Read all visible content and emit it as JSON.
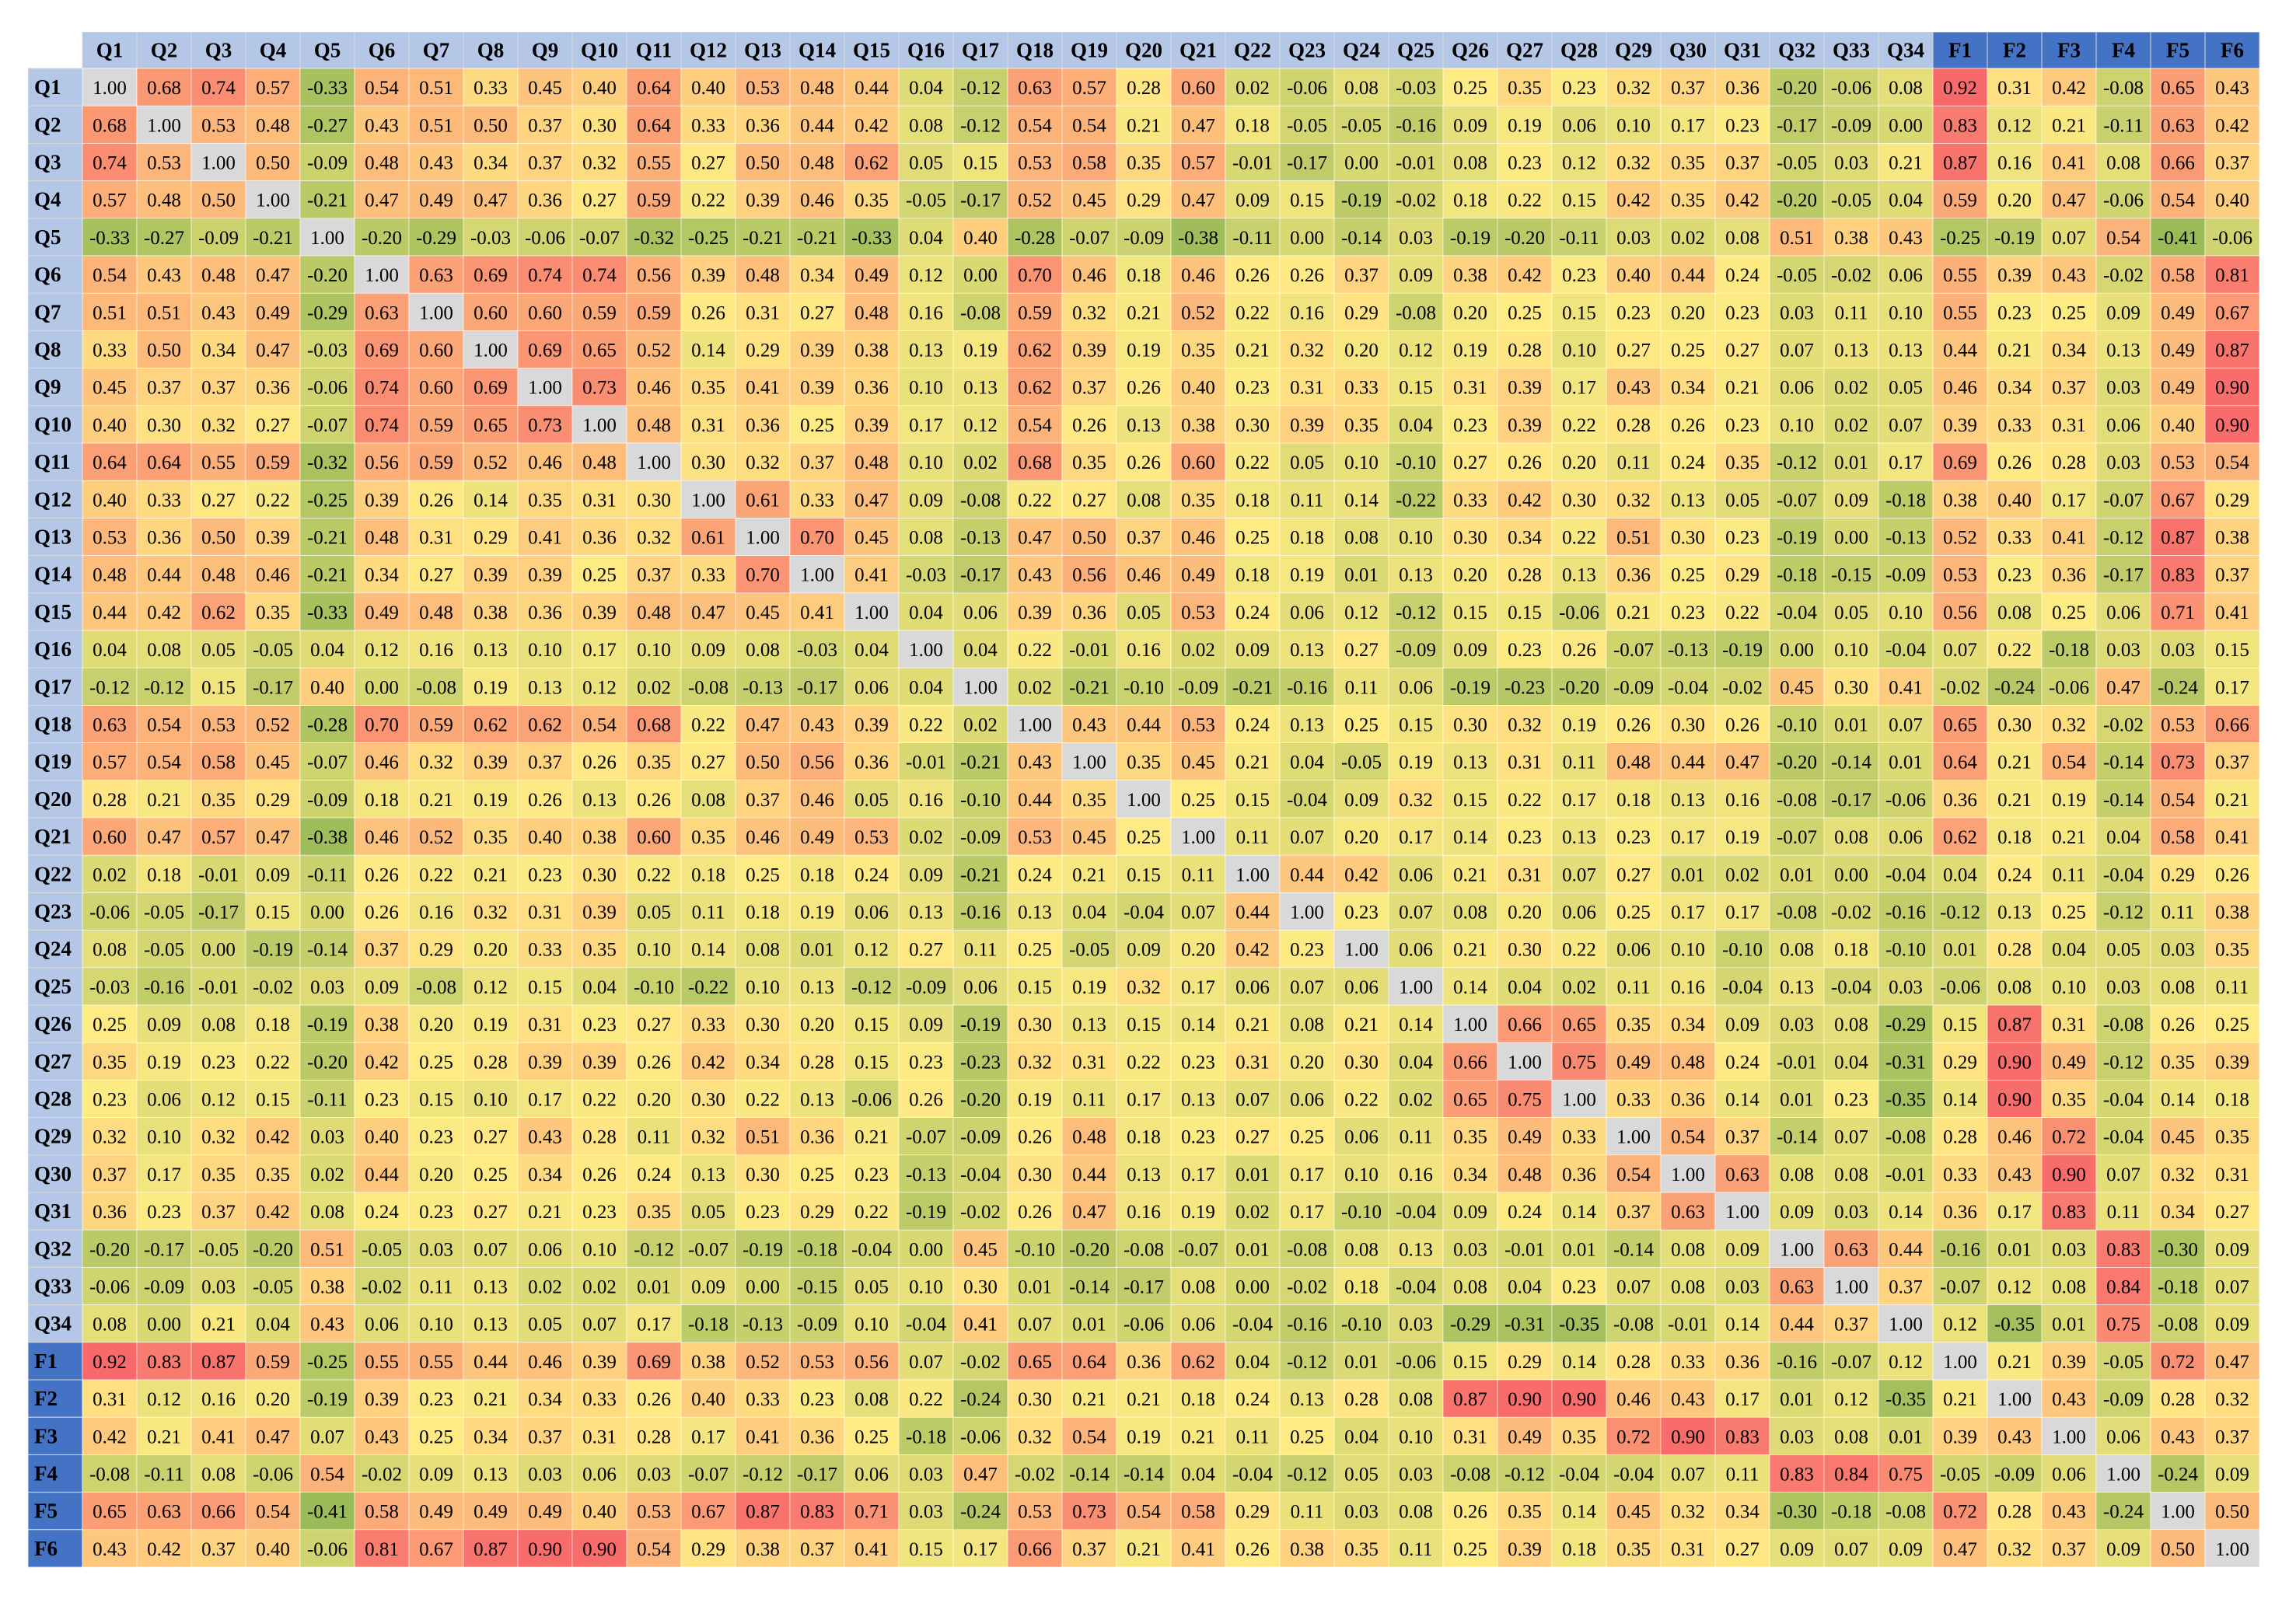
{
  "chart_data": {
    "type": "heatmap",
    "title": "",
    "xlabel": "",
    "ylabel": "",
    "labels": [
      "Q1",
      "Q2",
      "Q3",
      "Q4",
      "Q5",
      "Q6",
      "Q7",
      "Q8",
      "Q9",
      "Q10",
      "Q11",
      "Q12",
      "Q13",
      "Q14",
      "Q15",
      "Q16",
      "Q17",
      "Q18",
      "Q19",
      "Q20",
      "Q21",
      "Q22",
      "Q23",
      "Q24",
      "Q25",
      "Q26",
      "Q27",
      "Q28",
      "Q29",
      "Q30",
      "Q31",
      "Q32",
      "Q33",
      "Q34",
      "F1",
      "F2",
      "F3",
      "F4",
      "F5",
      "F6"
    ],
    "values": [
      "1.00 0.68 0.74 0.57 -0.33 0.54 0.51 0.33 0.45 0.40 0.64 0.40 0.53 0.48 0.44 0.04 -0.12 0.63 0.57 0.28 0.60 0.02 -0.06 0.08 -0.03 0.25 0.35 0.23 0.32 0.37 0.36 -0.20 -0.06 0.08 0.92 0.31 0.42 -0.08 0.65 0.43",
      "0.68 1.00 0.53 0.48 -0.27 0.43 0.51 0.50 0.37 0.30 0.64 0.33 0.36 0.44 0.42 0.08 -0.12 0.54 0.54 0.21 0.47 0.18 -0.05 -0.05 -0.16 0.09 0.19 0.06 0.10 0.17 0.23 -0.17 -0.09 0.00 0.83 0.12 0.21 -0.11 0.63 0.42",
      "0.74 0.53 1.00 0.50 -0.09 0.48 0.43 0.34 0.37 0.32 0.55 0.27 0.50 0.48 0.62 0.05 0.15 0.53 0.58 0.35 0.57 -0.01 -0.17 0.00 -0.01 0.08 0.23 0.12 0.32 0.35 0.37 -0.05 0.03 0.21 0.87 0.16 0.41 0.08 0.66 0.37",
      "0.57 0.48 0.50 1.00 -0.21 0.47 0.49 0.47 0.36 0.27 0.59 0.22 0.39 0.46 0.35 -0.05 -0.17 0.52 0.45 0.29 0.47 0.09 0.15 -0.19 -0.02 0.18 0.22 0.15 0.42 0.35 0.42 -0.20 -0.05 0.04 0.59 0.20 0.47 -0.06 0.54 0.40",
      "-0.33 -0.27 -0.09 -0.21 1.00 -0.20 -0.29 -0.03 -0.06 -0.07 -0.32 -0.25 -0.21 -0.21 -0.33 0.04 0.40 -0.28 -0.07 -0.09 -0.38 -0.11 0.00 -0.14 0.03 -0.19 -0.20 -0.11 0.03 0.02 0.08 0.51 0.38 0.43 -0.25 -0.19 0.07 0.54 -0.41 -0.06",
      "0.54 0.43 0.48 0.47 -0.20 1.00 0.63 0.69 0.74 0.74 0.56 0.39 0.48 0.34 0.49 0.12 0.00 0.70 0.46 0.18 0.46 0.26 0.26 0.37 0.09 0.38 0.42 0.23 0.40 0.44 0.24 -0.05 -0.02 0.06 0.55 0.39 0.43 -0.02 0.58 0.81",
      "0.51 0.51 0.43 0.49 -0.29 0.63 1.00 0.60 0.60 0.59 0.59 0.26 0.31 0.27 0.48 0.16 -0.08 0.59 0.32 0.21 0.52 0.22 0.16 0.29 -0.08 0.20 0.25 0.15 0.23 0.20 0.23 0.03 0.11 0.10 0.55 0.23 0.25 0.09 0.49 0.67",
      "0.33 0.50 0.34 0.47 -0.03 0.69 0.60 1.00 0.69 0.65 0.52 0.14 0.29 0.39 0.38 0.13 0.19 0.62 0.39 0.19 0.35 0.21 0.32 0.20 0.12 0.19 0.28 0.10 0.27 0.25 0.27 0.07 0.13 0.13 0.44 0.21 0.34 0.13 0.49 0.87",
      "0.45 0.37 0.37 0.36 -0.06 0.74 0.60 0.69 1.00 0.73 0.46 0.35 0.41 0.39 0.36 0.10 0.13 0.62 0.37 0.26 0.40 0.23 0.31 0.33 0.15 0.31 0.39 0.17 0.43 0.34 0.21 0.06 0.02 0.05 0.46 0.34 0.37 0.03 0.49 0.90",
      "0.40 0.30 0.32 0.27 -0.07 0.74 0.59 0.65 0.73 1.00 0.48 0.31 0.36 0.25 0.39 0.17 0.12 0.54 0.26 0.13 0.38 0.30 0.39 0.35 0.04 0.23 0.39 0.22 0.28 0.26 0.23 0.10 0.02 0.07 0.39 0.33 0.31 0.06 0.40 0.90",
      "0.64 0.64 0.55 0.59 -0.32 0.56 0.59 0.52 0.46 0.48 1.00 0.30 0.32 0.37 0.48 0.10 0.02 0.68 0.35 0.26 0.60 0.22 0.05 0.10 -0.10 0.27 0.26 0.20 0.11 0.24 0.35 -0.12 0.01 0.17 0.69 0.26 0.28 0.03 0.53 0.54",
      "0.40 0.33 0.27 0.22 -0.25 0.39 0.26 0.14 0.35 0.31 0.30 1.00 0.61 0.33 0.47 0.09 -0.08 0.22 0.27 0.08 0.35 0.18 0.11 0.14 -0.22 0.33 0.42 0.30 0.32 0.13 0.05 -0.07 0.09 -0.18 0.38 0.40 0.17 -0.07 0.67 0.29",
      "0.53 0.36 0.50 0.39 -0.21 0.48 0.31 0.29 0.41 0.36 0.32 0.61 1.00 0.70 0.45 0.08 -0.13 0.47 0.50 0.37 0.46 0.25 0.18 0.08 0.10 0.30 0.34 0.22 0.51 0.30 0.23 -0.19 0.00 -0.13 0.52 0.33 0.41 -0.12 0.87 0.38",
      "0.48 0.44 0.48 0.46 -0.21 0.34 0.27 0.39 0.39 0.25 0.37 0.33 0.70 1.00 0.41 -0.03 -0.17 0.43 0.56 0.46 0.49 0.18 0.19 0.01 0.13 0.20 0.28 0.13 0.36 0.25 0.29 -0.18 -0.15 -0.09 0.53 0.23 0.36 -0.17 0.83 0.37",
      "0.44 0.42 0.62 0.35 -0.33 0.49 0.48 0.38 0.36 0.39 0.48 0.47 0.45 0.41 1.00 0.04 0.06 0.39 0.36 0.05 0.53 0.24 0.06 0.12 -0.12 0.15 0.15 -0.06 0.21 0.23 0.22 -0.04 0.05 0.10 0.56 0.08 0.25 0.06 0.71 0.41",
      "0.04 0.08 0.05 -0.05 0.04 0.12 0.16 0.13 0.10 0.17 0.10 0.09 0.08 -0.03 0.04 1.00 0.04 0.22 -0.01 0.16 0.02 0.09 0.13 0.27 -0.09 0.09 0.23 0.26 -0.07 -0.13 -0.19 0.00 0.10 -0.04 0.07 0.22 -0.18 0.03 0.03 0.15",
      "-0.12 -0.12 0.15 -0.17 0.40 0.00 -0.08 0.19 0.13 0.12 0.02 -0.08 -0.13 -0.17 0.06 0.04 1.00 0.02 -0.21 -0.10 -0.09 -0.21 -0.16 0.11 0.06 -0.19 -0.23 -0.20 -0.09 -0.04 -0.02 0.45 0.30 0.41 -0.02 -0.24 -0.06 0.47 -0.24 0.17",
      "0.63 0.54 0.53 0.52 -0.28 0.70 0.59 0.62 0.62 0.54 0.68 0.22 0.47 0.43 0.39 0.22 0.02 1.00 0.43 0.44 0.53 0.24 0.13 0.25 0.15 0.30 0.32 0.19 0.26 0.30 0.26 -0.10 0.01 0.07 0.65 0.30 0.32 -0.02 0.53 0.66",
      "0.57 0.54 0.58 0.45 -0.07 0.46 0.32 0.39 0.37 0.26 0.35 0.27 0.50 0.56 0.36 -0.01 -0.21 0.43 1.00 0.35 0.45 0.21 0.04 -0.05 0.19 0.13 0.31 0.11 0.48 0.44 0.47 -0.20 -0.14 0.01 0.64 0.21 0.54 -0.14 0.73 0.37",
      "0.28 0.21 0.35 0.29 -0.09 0.18 0.21 0.19 0.26 0.13 0.26 0.08 0.37 0.46 0.05 0.16 -0.10 0.44 0.35 1.00 0.25 0.15 -0.04 0.09 0.32 0.15 0.22 0.17 0.18 0.13 0.16 -0.08 -0.17 -0.06 0.36 0.21 0.19 -0.14 0.54 0.21",
      "0.60 0.47 0.57 0.47 -0.38 0.46 0.52 0.35 0.40 0.38 0.60 0.35 0.46 0.49 0.53 0.02 -0.09 0.53 0.45 0.25 1.00 0.11 0.07 0.20 0.17 0.14 0.23 0.13 0.23 0.17 0.19 -0.07 0.08 0.06 0.62 0.18 0.21 0.04 0.58 0.41",
      "0.02 0.18 -0.01 0.09 -0.11 0.26 0.22 0.21 0.23 0.30 0.22 0.18 0.25 0.18 0.24 0.09 -0.21 0.24 0.21 0.15 0.11 1.00 0.44 0.42 0.06 0.21 0.31 0.07 0.27 0.01 0.02 0.01 0.00 -0.04 0.04 0.24 0.11 -0.04 0.29 0.26",
      "-0.06 -0.05 -0.17 0.15 0.00 0.26 0.16 0.32 0.31 0.39 0.05 0.11 0.18 0.19 0.06 0.13 -0.16 0.13 0.04 -0.04 0.07 0.44 1.00 0.23 0.07 0.08 0.20 0.06 0.25 0.17 0.17 -0.08 -0.02 -0.16 -0.12 0.13 0.25 -0.12 0.11 0.38",
      "0.08 -0.05 0.00 -0.19 -0.14 0.37 0.29 0.20 0.33 0.35 0.10 0.14 0.08 0.01 0.12 0.27 0.11 0.25 -0.05 0.09 0.20 0.42 0.23 1.00 0.06 0.21 0.30 0.22 0.06 0.10 -0.10 0.08 0.18 -0.10 0.01 0.28 0.04 0.05 0.03 0.35",
      "-0.03 -0.16 -0.01 -0.02 0.03 0.09 -0.08 0.12 0.15 0.04 -0.10 -0.22 0.10 0.13 -0.12 -0.09 0.06 0.15 0.19 0.32 0.17 0.06 0.07 0.06 1.00 0.14 0.04 0.02 0.11 0.16 -0.04 0.13 -0.04 0.03 -0.06 0.08 0.10 0.03 0.08 0.11",
      "0.25 0.09 0.08 0.18 -0.19 0.38 0.20 0.19 0.31 0.23 0.27 0.33 0.30 0.20 0.15 0.09 -0.19 0.30 0.13 0.15 0.14 0.21 0.08 0.21 0.14 1.00 0.66 0.65 0.35 0.34 0.09 0.03 0.08 -0.29 0.15 0.87 0.31 -0.08 0.26 0.25",
      "0.35 0.19 0.23 0.22 -0.20 0.42 0.25 0.28 0.39 0.39 0.26 0.42 0.34 0.28 0.15 0.23 -0.23 0.32 0.31 0.22 0.23 0.31 0.20 0.30 0.04 0.66 1.00 0.75 0.49 0.48 0.24 -0.01 0.04 -0.31 0.29 0.90 0.49 -0.12 0.35 0.39",
      "0.23 0.06 0.12 0.15 -0.11 0.23 0.15 0.10 0.17 0.22 0.20 0.30 0.22 0.13 -0.06 0.26 -0.20 0.19 0.11 0.17 0.13 0.07 0.06 0.22 0.02 0.65 0.75 1.00 0.33 0.36 0.14 0.01 0.23 -0.35 0.14 0.90 0.35 -0.04 0.14 0.18",
      "0.32 0.10 0.32 0.42 0.03 0.40 0.23 0.27 0.43 0.28 0.11 0.32 0.51 0.36 0.21 -0.07 -0.09 0.26 0.48 0.18 0.23 0.27 0.25 0.06 0.11 0.35 0.49 0.33 1.00 0.54 0.37 -0.14 0.07 -0.08 0.28 0.46 0.72 -0.04 0.45 0.35",
      "0.37 0.17 0.35 0.35 0.02 0.44 0.20 0.25 0.34 0.26 0.24 0.13 0.30 0.25 0.23 -0.13 -0.04 0.30 0.44 0.13 0.17 0.01 0.17 0.10 0.16 0.34 0.48 0.36 0.54 1.00 0.63 0.08 0.08 -0.01 0.33 0.43 0.90 0.07 0.32 0.31",
      "0.36 0.23 0.37 0.42 0.08 0.24 0.23 0.27 0.21 0.23 0.35 0.05 0.23 0.29 0.22 -0.19 -0.02 0.26 0.47 0.16 0.19 0.02 0.17 -0.10 -0.04 0.09 0.24 0.14 0.37 0.63 1.00 0.09 0.03 0.14 0.36 0.17 0.83 0.11 0.34 0.27",
      "-0.20 -0.17 -0.05 -0.20 0.51 -0.05 0.03 0.07 0.06 0.10 -0.12 -0.07 -0.19 -0.18 -0.04 0.00 0.45 -0.10 -0.20 -0.08 -0.07 0.01 -0.08 0.08 0.13 0.03 -0.01 0.01 -0.14 0.08 0.09 1.00 0.63 0.44 -0.16 0.01 0.03 0.83 -0.30 0.09",
      "-0.06 -0.09 0.03 -0.05 0.38 -0.02 0.11 0.13 0.02 0.02 0.01 0.09 0.00 -0.15 0.05 0.10 0.30 0.01 -0.14 -0.17 0.08 0.00 -0.02 0.18 -0.04 0.08 0.04 0.23 0.07 0.08 0.03 0.63 1.00 0.37 -0.07 0.12 0.08 0.84 -0.18 0.07",
      "0.08 0.00 0.21 0.04 0.43 0.06 0.10 0.13 0.05 0.07 0.17 -0.18 -0.13 -0.09 0.10 -0.04 0.41 0.07 0.01 -0.06 0.06 -0.04 -0.16 -0.10 0.03 -0.29 -0.31 -0.35 -0.08 -0.01 0.14 0.44 0.37 1.00 0.12 -0.35 0.01 0.75 -0.08 0.09",
      "0.92 0.83 0.87 0.59 -0.25 0.55 0.55 0.44 0.46 0.39 0.69 0.38 0.52 0.53 0.56 0.07 -0.02 0.65 0.64 0.36 0.62 0.04 -0.12 0.01 -0.06 0.15 0.29 0.14 0.28 0.33 0.36 -0.16 -0.07 0.12 1.00 0.21 0.39 -0.05 0.72 0.47",
      "0.31 0.12 0.16 0.20 -0.19 0.39 0.23 0.21 0.34 0.33 0.26 0.40 0.33 0.23 0.08 0.22 -0.24 0.30 0.21 0.21 0.18 0.24 0.13 0.28 0.08 0.87 0.90 0.90 0.46 0.43 0.17 0.01 0.12 -0.35 0.21 1.00 0.43 -0.09 0.28 0.32",
      "0.42 0.21 0.41 0.47 0.07 0.43 0.25 0.34 0.37 0.31 0.28 0.17 0.41 0.36 0.25 -0.18 -0.06 0.32 0.54 0.19 0.21 0.11 0.25 0.04 0.10 0.31 0.49 0.35 0.72 0.90 0.83 0.03 0.08 0.01 0.39 0.43 1.00 0.06 0.43 0.37",
      "-0.08 -0.11 0.08 -0.06 0.54 -0.02 0.09 0.13 0.03 0.06 0.03 -0.07 -0.12 -0.17 0.06 0.03 0.47 -0.02 -0.14 -0.14 0.04 -0.04 -0.12 0.05 0.03 -0.08 -0.12 -0.04 -0.04 0.07 0.11 0.83 0.84 0.75 -0.05 -0.09 0.06 1.00 -0.24 0.09",
      "0.65 0.63 0.66 0.54 -0.41 0.58 0.49 0.49 0.49 0.40 0.53 0.67 0.87 0.83 0.71 0.03 -0.24 0.53 0.73 0.54 0.58 0.29 0.11 0.03 0.08 0.26 0.35 0.14 0.45 0.32 0.34 -0.30 -0.18 -0.08 0.72 0.28 0.43 -0.24 1.00 0.50",
      "0.43 0.42 0.37 0.40 -0.06 0.81 0.67 0.87 0.90 0.90 0.54 0.29 0.38 0.37 0.41 0.15 0.17 0.66 0.37 0.21 0.41 0.26 0.38 0.35 0.11 0.25 0.39 0.18 0.35 0.31 0.27 0.09 0.07 0.09 0.47 0.32 0.37 0.09 0.50 1.00"
    ],
    "value_range": [
      -0.41,
      1.0
    ],
    "grid": true,
    "legend": "none",
    "colors": {
      "diagonal": "#d9d9d9",
      "header_q": "#b4c7e7",
      "header_f": "#4472c4",
      "scale_low": "#9bbb59",
      "scale_mid": "#ffeb84",
      "scale_high": "#f8696b",
      "text": "#000000",
      "border": "#d9d9d9"
    }
  }
}
